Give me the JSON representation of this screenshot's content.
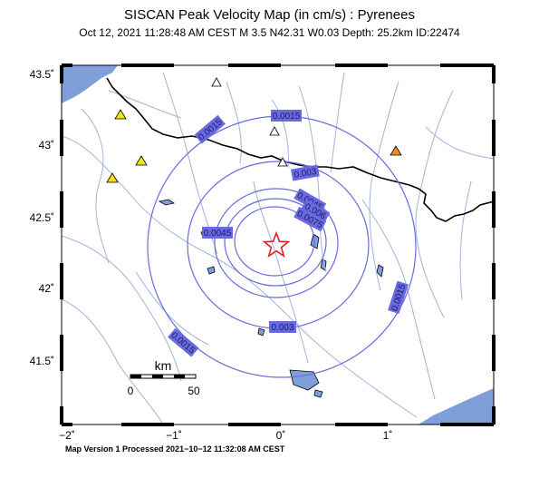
{
  "title": "SISCAN Peak Velocity Map (in cm/s) : Pyrenees",
  "subtitle": "Oct 12, 2021 11:28:48 AM CEST   M 3.5   N42.31 W0.03   Depth: 25.2km   ID:22474",
  "footer": "Map Version 1 Processed 2021−10−12 11:32:08 AM CEST",
  "lat_labels": [
    "43.5˚",
    "43˚",
    "42.5˚",
    "42˚",
    "41.5˚"
  ],
  "lon_labels": [
    "−2˚",
    "−1˚",
    "0˚",
    "1˚"
  ],
  "contour_labels": {
    "c1": "0.0015",
    "c2": "0.0015",
    "c3": "0.0015",
    "c4": "0.0015",
    "c5": "0.003",
    "c6": "0.003",
    "c7": "0.0045",
    "c8": "0.0045",
    "c9": "0.006",
    "c10": "0.0075"
  },
  "scale": {
    "unit": "km",
    "min": "0",
    "max": "50"
  },
  "colors": {
    "contour": "#6a6ae0",
    "label_bg": "#6a6ae0",
    "water": "#7f9fdb",
    "border": "#000000",
    "rivers": "#9fb4dc"
  },
  "icons": {
    "epicenter": "red-star-outline",
    "stations": [
      "white-triangle",
      "yellow-triangle",
      "orange-triangle"
    ]
  }
}
